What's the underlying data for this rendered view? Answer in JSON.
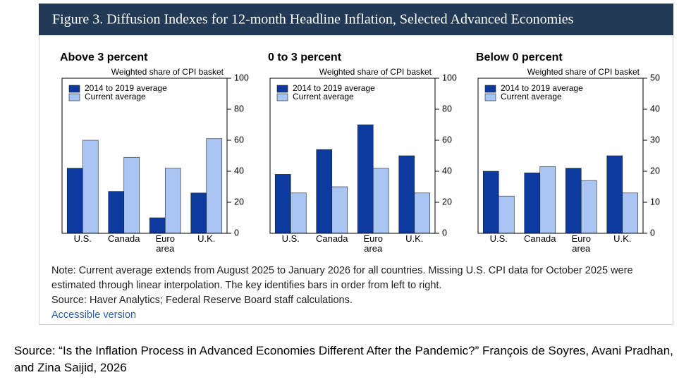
{
  "figure_title": "Figure 3. Diffusion Indexes for 12-month Headline Inflation, Selected Advanced Economies",
  "chart_data": [
    {
      "type": "bar",
      "title": "Above 3 percent",
      "y_label": "Weighted share of CPI basket",
      "categories": [
        "U.S.",
        "Canada",
        "Euro area",
        "U.K."
      ],
      "series": [
        {
          "name": "2014 to 2019 average",
          "color": "#0c3a9e",
          "values": [
            42,
            27,
            10,
            26
          ]
        },
        {
          "name": "Current average",
          "color": "#a9c5f2",
          "values": [
            60,
            49,
            42,
            61
          ]
        }
      ],
      "ylim": [
        0,
        100
      ],
      "yticks": [
        0,
        20,
        40,
        60,
        80,
        100
      ],
      "y_axis_side": "right",
      "legend": "upper left"
    },
    {
      "type": "bar",
      "title": "0 to 3 percent",
      "y_label": "Weighted share of CPI basket",
      "categories": [
        "U.S.",
        "Canada",
        "Euro area",
        "U.K."
      ],
      "series": [
        {
          "name": "2014 to 2019 average",
          "color": "#0c3a9e",
          "values": [
            38,
            54,
            70,
            50
          ]
        },
        {
          "name": "Current average",
          "color": "#a9c5f2",
          "values": [
            26,
            30,
            42,
            26
          ]
        }
      ],
      "ylim": [
        0,
        100
      ],
      "yticks": [
        0,
        20,
        40,
        60,
        80,
        100
      ],
      "y_axis_side": "right",
      "legend": "upper left"
    },
    {
      "type": "bar",
      "title": "Below 0 percent",
      "y_label": "Weighted share of CPI basket",
      "categories": [
        "U.S.",
        "Canada",
        "Euro area",
        "U.K."
      ],
      "series": [
        {
          "name": "2014 to 2019 average",
          "color": "#0c3a9e",
          "values": [
            20,
            19.5,
            21,
            25
          ]
        },
        {
          "name": "Current average",
          "color": "#a9c5f2",
          "values": [
            12,
            21.5,
            17,
            13
          ]
        }
      ],
      "ylim": [
        0,
        50
      ],
      "yticks": [
        0,
        10,
        20,
        30,
        40,
        50
      ],
      "y_axis_side": "right",
      "legend": "upper left"
    }
  ],
  "note": "Note: Current average extends from August 2025 to January 2026 for all countries. Missing U.S. CPI data for October 2025 were estimated through linear interpolation. The key identifies bars in order from left to right.",
  "source": "Source: Haver Analytics; Federal Reserve Board staff calculations.",
  "accessible_link": "Accessible version",
  "caption": "Source: “Is the Inflation Process in Advanced Economies Different After the Pandemic?” François de Soyres, Avani Pradhan, and Zina Saijid, 2026"
}
